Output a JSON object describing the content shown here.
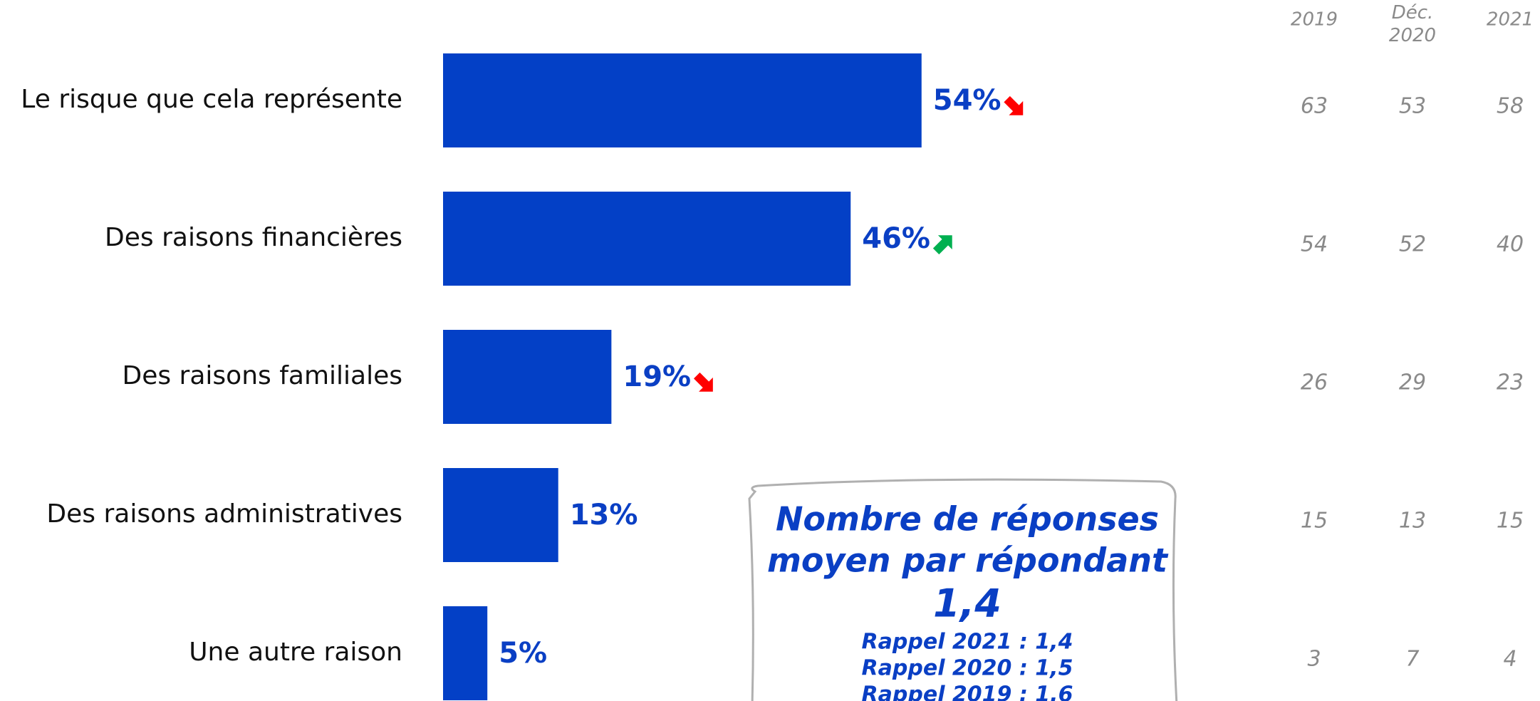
{
  "chart_data": {
    "type": "bar",
    "orientation": "horizontal",
    "categories": [
      "Le risque que cela représente",
      "Des raisons financières",
      "Des raisons familiales",
      "Des raisons administratives",
      "Une autre raison"
    ],
    "values": [
      54,
      46,
      19,
      13,
      5
    ],
    "value_labels": [
      "54%",
      "46%",
      "19%",
      "13%",
      "5%"
    ],
    "color": "#0340c6",
    "trends": [
      "down",
      "up",
      "down",
      null,
      null
    ],
    "trend_colors": {
      "down": "#ff0000",
      "up": "#00b050"
    },
    "comparison": {
      "headers": [
        "2019",
        "Déc. 2020",
        "2021"
      ],
      "rows": [
        [
          63,
          53,
          58
        ],
        [
          54,
          52,
          40
        ],
        [
          26,
          29,
          23
        ],
        [
          15,
          13,
          15
        ],
        [
          3,
          7,
          4
        ]
      ]
    },
    "note": {
      "title": [
        "Nombre de réponses",
        "moyen par répondant"
      ],
      "value": "1,4",
      "recalls": [
        "Rappel 2021 : 1,4",
        "Rappel 2020 : 1,5",
        "Rappel 2019 : 1,6"
      ]
    }
  }
}
